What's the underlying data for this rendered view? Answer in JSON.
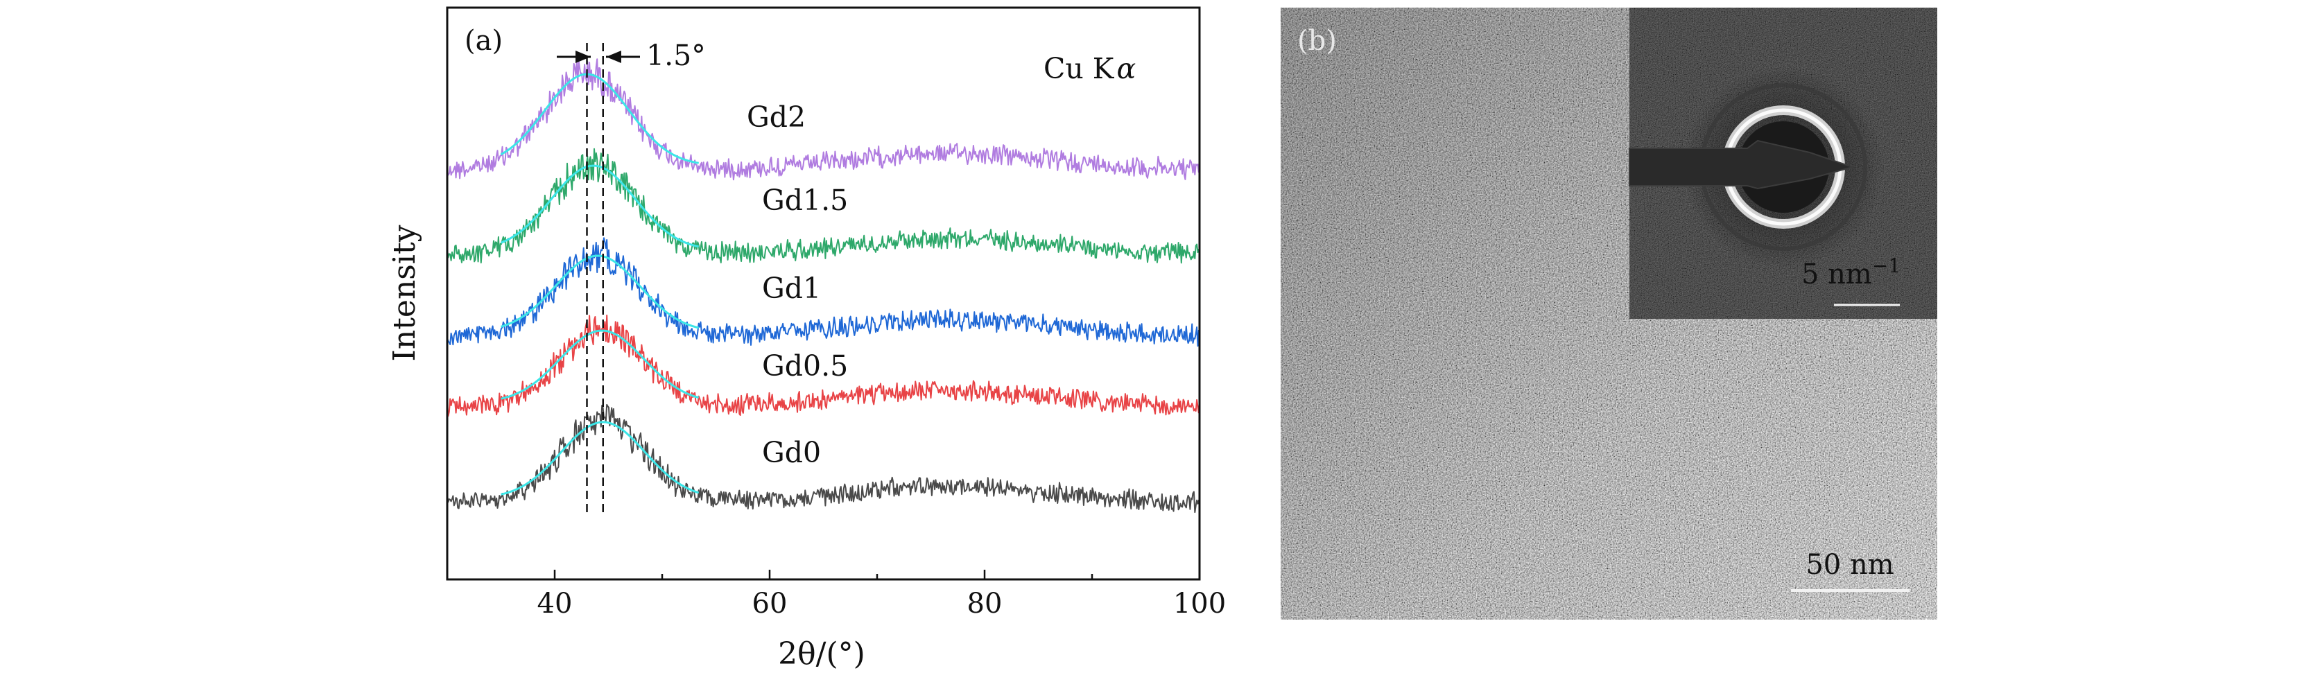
{
  "panel_a": {
    "label": "(a)",
    "radiation": "Cu K",
    "radiation_greek": "α",
    "peak_shift": "1.5°",
    "x_axis_label": "2θ/(°)",
    "y_axis_label": "Intensity"
  },
  "panel_b": {
    "label": "(b)",
    "main_scale_bar": "50 nm",
    "inset_scale_bar": "5 nm",
    "inset_scale_bar_unit_power": "−1"
  },
  "chart_data": {
    "type": "line",
    "title": "",
    "xlabel": "2θ/(°)",
    "ylabel": "Intensity",
    "xlim": [
      30,
      100
    ],
    "x_ticks": [
      40,
      60,
      80,
      100
    ],
    "y_ticks_shown": false,
    "grid": false,
    "series_order_bottom_to_top": [
      "Gd0",
      "Gd0.5",
      "Gd1",
      "Gd1.5",
      "Gd2"
    ],
    "series": [
      {
        "name": "Gd0",
        "color": "#4a4a4a",
        "peak_center": 44.5,
        "fit_curve_range": [
          35,
          53.5
        ]
      },
      {
        "name": "Gd0.5",
        "color": "#e84346",
        "peak_center": 44.4,
        "fit_curve_range": [
          35,
          53.5
        ]
      },
      {
        "name": "Gd1",
        "color": "#1f68d6",
        "peak_center": 44.0,
        "fit_curve_range": [
          35,
          53.5
        ]
      },
      {
        "name": "Gd1.5",
        "color": "#2ea86a",
        "peak_center": 43.6,
        "fit_curve_range": [
          35,
          53.5
        ]
      },
      {
        "name": "Gd2",
        "color": "#b07ce0",
        "peak_center": 43.0,
        "fit_curve_range": [
          35,
          53.5
        ]
      }
    ],
    "fit_curve_color": "#3ce6e8",
    "reference_lines_x": [
      43.0,
      44.5
    ],
    "secondary_hump_center": 77
  },
  "colors": {
    "axis": "#111111",
    "tem_dark": "#2e2e2e",
    "inset_background": "#0a0a0a",
    "ring": "#d9d9d9"
  }
}
